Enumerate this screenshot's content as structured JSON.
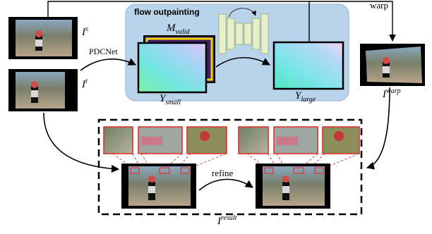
{
  "panel": {
    "title": "flow outpainting"
  },
  "labels": {
    "i_s_base": "I",
    "i_s_sup": "s",
    "i_t_base": "I",
    "i_t_sup": "t",
    "i_warp_base": "I",
    "i_warp_sup": "warp",
    "i_result_base": "I",
    "i_result_sup": "result",
    "m_valid_base": "M",
    "m_valid_sub": "valid",
    "y_small_base": "Y",
    "y_small_sub": "small",
    "y_large_base": "Y",
    "y_large_sub": "large"
  },
  "edges": {
    "pdcnet": "PDCNet",
    "warp": "warp",
    "refine": "refine"
  },
  "colors": {
    "panel_fill": "#b9d3ea",
    "panel_stroke": "#8fb2d6",
    "crop_border": "#e0322f",
    "mask_border": "#f5d400",
    "mask_fill": "#3d1f66",
    "unet_fill": "#e8f0c8"
  }
}
